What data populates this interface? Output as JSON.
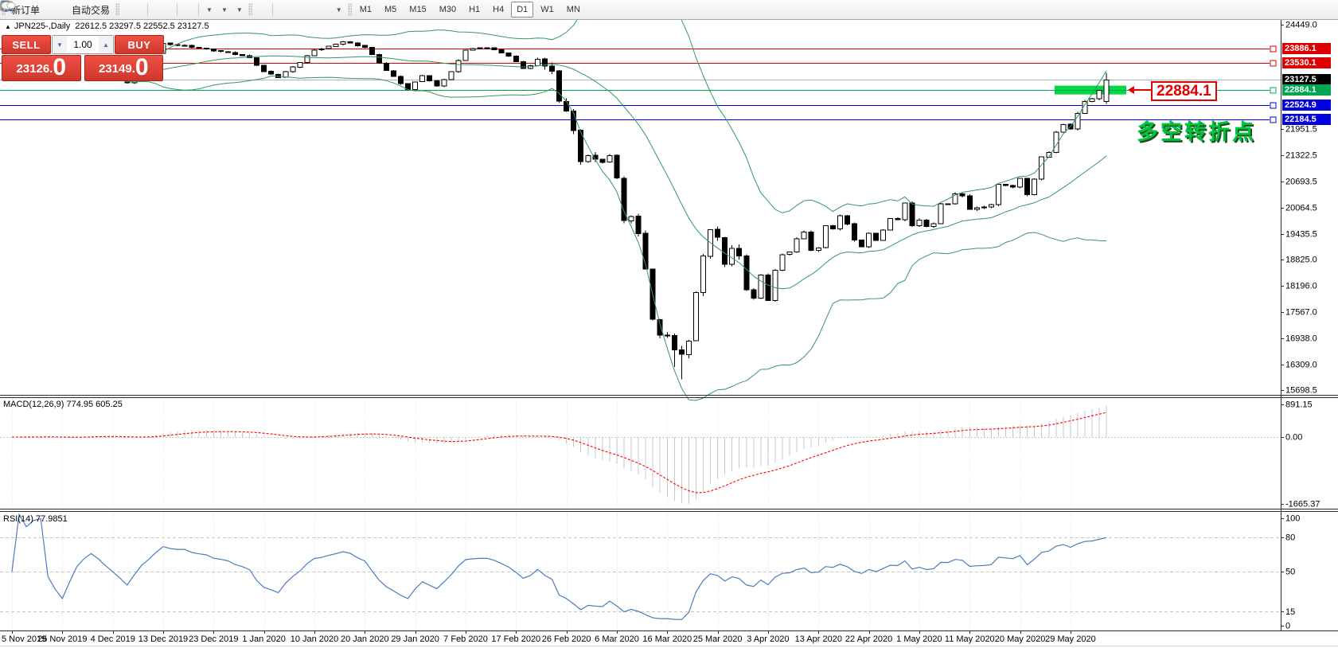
{
  "toolbar": {
    "new_order_label": "新订单",
    "algo_trading_label": "自动交易",
    "timeframes": [
      "M1",
      "M5",
      "M15",
      "M30",
      "H1",
      "H4",
      "D1",
      "W1",
      "MN"
    ],
    "active_timeframe": "D1"
  },
  "header": {
    "collapse": "▲",
    "title": "JPN225-,Daily",
    "ohlc": "22612.5 23297.5 22552.5 23127.5"
  },
  "trade_panel": {
    "sell": "SELL",
    "buy": "BUY",
    "volume": "1.00",
    "sell_price_main": "23126",
    "sell_price_dot": ".",
    "sell_price_big": "0",
    "buy_price_main": "23149",
    "buy_price_dot": ".",
    "buy_price_big": "0"
  },
  "annotations": {
    "turning_point": "多空转折点",
    "tag_price": "22884.1"
  },
  "chart_data": {
    "type": "candlestick",
    "symbol": "JPN225-",
    "timeframe": "Daily",
    "last_ohlc": {
      "open": 22612.5,
      "high": 23297.5,
      "low": 22552.5,
      "close": 23127.5
    },
    "x_dates": [
      "5 Nov 2019",
      "25 Nov 2019",
      "4 Dec 2019",
      "13 Dec 2019",
      "23 Dec 2019",
      "1 Jan 2020",
      "10 Jan 2020",
      "20 Jan 2020",
      "29 Jan 2020",
      "7 Feb 2020",
      "17 Feb 2020",
      "26 Feb 2020",
      "6 Mar 2020",
      "16 Mar 2020",
      "25 Mar 2020",
      "3 Apr 2020",
      "13 Apr 2020",
      "22 Apr 2020",
      "1 May 2020",
      "11 May 2020",
      "20 May 2020",
      "29 May 2020"
    ],
    "y_ticks_main": [
      "24449.0",
      "21951.5",
      "21322.5",
      "20693.5",
      "20064.5",
      "19435.5",
      "18825.0",
      "18196.0",
      "17567.0",
      "16938.0",
      "16309.0",
      "15698.5"
    ],
    "y_range_main": [
      15698.5,
      24449.0
    ],
    "levels": [
      {
        "label": "23886.1",
        "price": 23886.1,
        "color": "#dd0000",
        "marker": true
      },
      {
        "label": "23530.1",
        "price": 23530.1,
        "color": "#dd0000",
        "marker": true
      },
      {
        "label": "23127.5",
        "price": 23127.5,
        "color": "#b4b4b4",
        "current": true
      },
      {
        "label": "22884.1",
        "price": 22884.1,
        "color": "#00a651",
        "marker": true,
        "highlight": true
      },
      {
        "label": "22524.9",
        "price": 22524.9,
        "color": "#0000dd",
        "marker": true
      },
      {
        "label": "22184.5",
        "price": 22184.5,
        "color": "#0000dd",
        "marker": true
      }
    ],
    "highlight_bar": {
      "price": 22884.1,
      "color": "#00d943"
    },
    "num_candles": 153,
    "close_anchors": [
      [
        0,
        23300
      ],
      [
        4,
        23380
      ],
      [
        7,
        23150
      ],
      [
        11,
        23520
      ],
      [
        14,
        23300
      ],
      [
        16,
        23050
      ],
      [
        19,
        23560
      ],
      [
        21,
        24000
      ],
      [
        24,
        23950
      ],
      [
        28,
        23830
      ],
      [
        31,
        23740
      ],
      [
        33,
        23650
      ],
      [
        35,
        23320
      ],
      [
        37,
        23200
      ],
      [
        40,
        23560
      ],
      [
        42,
        23850
      ],
      [
        44,
        23920
      ],
      [
        46,
        24040
      ],
      [
        49,
        23900
      ],
      [
        52,
        23350
      ],
      [
        55,
        22900
      ],
      [
        57,
        23250
      ],
      [
        59,
        22980
      ],
      [
        61,
        23320
      ],
      [
        63,
        23850
      ],
      [
        66,
        23900
      ],
      [
        69,
        23700
      ],
      [
        71,
        23400
      ],
      [
        73,
        23600
      ],
      [
        75,
        23386
      ],
      [
        76,
        22605
      ],
      [
        77,
        22426
      ],
      [
        78,
        21948
      ],
      [
        79,
        21143
      ],
      [
        80,
        21344
      ],
      [
        82,
        21100
      ],
      [
        83,
        21329
      ],
      [
        84,
        20750
      ],
      [
        85,
        19699
      ],
      [
        86,
        19867
      ],
      [
        87,
        19416
      ],
      [
        88,
        18560
      ],
      [
        89,
        17431
      ],
      [
        90,
        17002
      ],
      [
        91,
        17011
      ],
      [
        92,
        16727
      ],
      [
        93,
        16553
      ],
      [
        94,
        16888
      ],
      [
        95,
        18092
      ],
      [
        96,
        18890
      ],
      [
        97,
        19546
      ],
      [
        98,
        19389
      ],
      [
        99,
        18665
      ],
      [
        100,
        19085
      ],
      [
        101,
        18917
      ],
      [
        102,
        18065
      ],
      [
        103,
        17900
      ],
      [
        104,
        18450
      ],
      [
        105,
        17820
      ],
      [
        106,
        18576
      ],
      [
        107,
        18950
      ],
      [
        108,
        18990
      ],
      [
        109,
        19345
      ],
      [
        110,
        19498
      ],
      [
        111,
        19043
      ],
      [
        112,
        19135
      ],
      [
        113,
        19638
      ],
      [
        114,
        19550
      ],
      [
        115,
        19897
      ],
      [
        116,
        19669
      ],
      [
        117,
        19280
      ],
      [
        118,
        19137
      ],
      [
        119,
        19429
      ],
      [
        120,
        19262
      ],
      [
        121,
        19537
      ],
      [
        122,
        19783
      ],
      [
        123,
        19771
      ],
      [
        124,
        20193
      ],
      [
        125,
        19619
      ],
      [
        126,
        19780
      ],
      [
        127,
        19640
      ],
      [
        128,
        19675
      ],
      [
        129,
        20180
      ],
      [
        130,
        20179
      ],
      [
        131,
        20390
      ],
      [
        132,
        20366
      ],
      [
        133,
        20037
      ],
      [
        134,
        20045
      ],
      [
        135,
        20087
      ],
      [
        136,
        20134
      ],
      [
        137,
        20595
      ],
      [
        138,
        20600
      ],
      [
        139,
        20552
      ],
      [
        140,
        20741
      ],
      [
        141,
        20388
      ],
      [
        142,
        20742
      ],
      [
        143,
        21271
      ],
      [
        144,
        21419
      ],
      [
        145,
        21878
      ],
      [
        146,
        22062
      ],
      [
        147,
        21980
      ],
      [
        148,
        22326
      ],
      [
        149,
        22614
      ],
      [
        150,
        22696
      ],
      [
        151,
        22863
      ],
      [
        152,
        23127.5
      ]
    ],
    "deep_wick": {
      "index": 93,
      "low": 15960
    },
    "indicators": {
      "bollinger": {
        "period": 20,
        "deviation": 2,
        "color": "#36985f"
      },
      "macd": {
        "label": "MACD(12,26,9) 774.95 605.25",
        "params": [
          12,
          26,
          9
        ],
        "values": [
          774.95,
          605.25
        ],
        "y_ticks": [
          "891.15",
          "0.00",
          "-1665.37"
        ],
        "hist_color": "#c6c6d0",
        "signal_color": "#ff0000"
      },
      "rsi": {
        "label": "RSI(14) 77.9851",
        "period": 14,
        "value": 77.9851,
        "y_ticks": [
          "100",
          "80",
          "50",
          "15",
          "0"
        ],
        "level_lines": [
          80,
          50,
          15
        ],
        "color": "#4a7dbd"
      }
    }
  }
}
